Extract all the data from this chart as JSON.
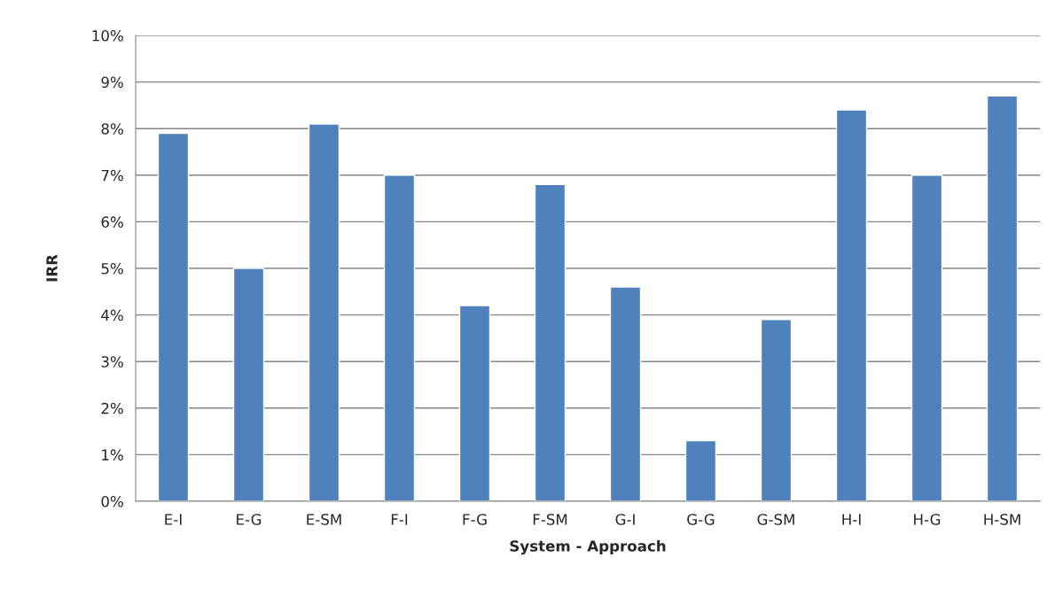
{
  "chart_data": {
    "type": "bar",
    "xlabel": "System - Approach",
    "ylabel": "IRR",
    "categories": [
      "E-I",
      "E-G",
      "E-SM",
      "F-I",
      "F-G",
      "F-SM",
      "G-I",
      "G-G",
      "G-SM",
      "H-I",
      "H-G",
      "H-SM"
    ],
    "values": [
      7.9,
      5.0,
      8.1,
      7.0,
      4.2,
      6.8,
      4.6,
      1.3,
      3.9,
      8.4,
      7.0,
      8.7
    ],
    "color": "#4f81bd",
    "ylim": [
      0,
      10
    ],
    "yticks": [
      {
        "value": 0,
        "label": "0%"
      },
      {
        "value": 1,
        "label": "1%"
      },
      {
        "value": 2,
        "label": "2%"
      },
      {
        "value": 3,
        "label": "3%"
      },
      {
        "value": 4,
        "label": "4%"
      },
      {
        "value": 5,
        "label": "5%"
      },
      {
        "value": 6,
        "label": "6%"
      },
      {
        "value": 7,
        "label": "7%"
      },
      {
        "value": 8,
        "label": "8%"
      },
      {
        "value": 9,
        "label": "9%"
      },
      {
        "value": 10,
        "label": "10%"
      }
    ],
    "grid": "y"
  }
}
